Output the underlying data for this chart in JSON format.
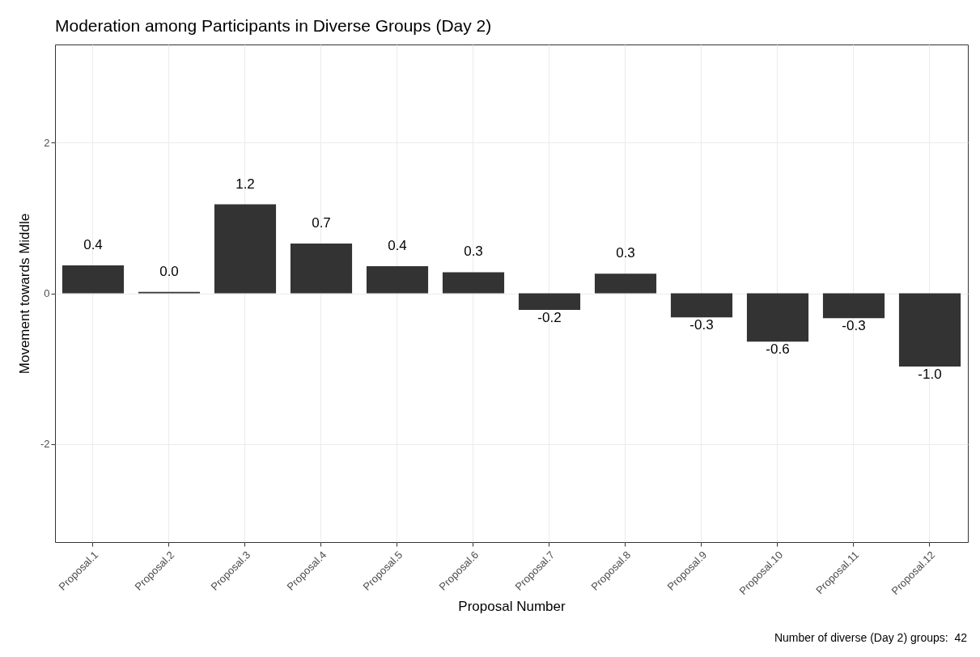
{
  "chart_data": {
    "type": "bar",
    "title": "Moderation among Participants in Diverse Groups (Day 2)",
    "xlabel": "Proposal Number",
    "ylabel": "Movement towards Middle",
    "categories": [
      "Proposal.1",
      "Proposal.2",
      "Proposal.3",
      "Proposal.4",
      "Proposal.5",
      "Proposal.6",
      "Proposal.7",
      "Proposal.8",
      "Proposal.9",
      "Proposal.10",
      "Proposal.11",
      "Proposal.12"
    ],
    "values": [
      0.37,
      0.02,
      1.18,
      0.66,
      0.36,
      0.28,
      -0.22,
      0.26,
      -0.32,
      -0.64,
      -0.33,
      -0.97
    ],
    "value_labels": [
      "0.4",
      "0.0",
      "1.2",
      "0.7",
      "0.4",
      "0.3",
      "-0.2",
      "0.3",
      "-0.3",
      "-0.6",
      "-0.3",
      "-1.0"
    ],
    "color": "#333333",
    "ylim": [
      -3.3,
      3.3
    ],
    "yticks": [
      -2,
      0,
      2
    ],
    "grid": true,
    "annotations": [
      "Number of diverse (Day 2) groups:  42"
    ]
  }
}
